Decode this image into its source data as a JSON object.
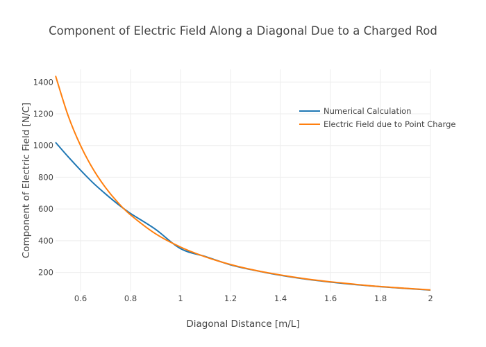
{
  "chart_data": {
    "type": "line",
    "title": "Component of Electric Field Along a Diagonal Due to a Charged Rod",
    "xlabel": "Diagonal Distance [m/L]",
    "ylabel": "Component of Electric Field [N/C]",
    "xlim": [
      0.5,
      2
    ],
    "ylim": [
      80,
      1480
    ],
    "xticks": [
      0.6,
      0.8,
      1,
      1.2,
      1.4,
      1.6,
      1.8,
      2
    ],
    "xtick_labels": [
      "0.6",
      "0.8",
      "1",
      "1.2",
      "1.4",
      "1.6",
      "1.8",
      "2"
    ],
    "yticks": [
      200,
      400,
      600,
      800,
      1000,
      1200,
      1400
    ],
    "ytick_labels": [
      "200",
      "400",
      "600",
      "800",
      "1000",
      "1200",
      "1400"
    ],
    "grid": true,
    "legend_position": "top-right",
    "x": [
      0.5,
      0.55,
      0.6,
      0.65,
      0.7,
      0.75,
      0.8,
      0.9,
      1.0,
      1.1,
      1.2,
      1.3,
      1.4,
      1.5,
      1.6,
      1.7,
      1.8,
      1.9,
      2.0
    ],
    "series": [
      {
        "name": "Numerical Calculation",
        "color": "#1f77b4",
        "values": [
          1020,
          930,
          845,
          765,
          695,
          630,
          572,
          472,
          350,
          300,
          248,
          212,
          182,
          158,
          139,
          123,
          110,
          99,
          89
        ]
      },
      {
        "name": "Electric Field due to Point Charge",
        "color": "#ff7f0e",
        "values": [
          1440,
          1190,
          1000,
          852,
          735,
          640,
          563,
          444,
          360,
          298,
          250,
          213,
          184,
          160,
          141,
          125,
          111,
          100,
          90
        ]
      }
    ]
  }
}
